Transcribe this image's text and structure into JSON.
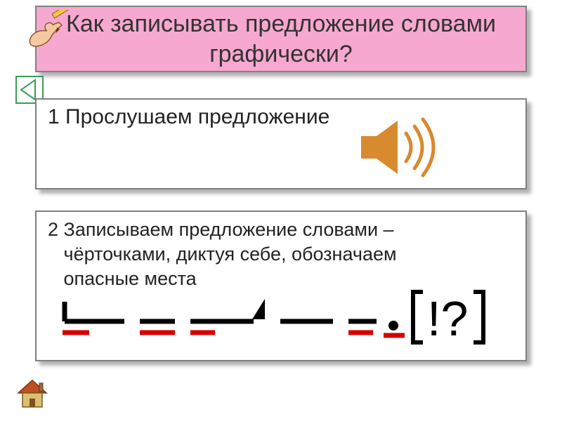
{
  "title": "Как записывать предложение словами графически?",
  "step1": "1  Прослушаем предложение",
  "step2_line1": "2  Записываем предложение  словами –",
  "step2_line2": "чёрточками, диктуя себе, обозначаем",
  "step2_line3": "опасные места",
  "colors": {
    "title_bg": "#f7a8d0",
    "border": "#808080",
    "speaker": "#d88a2e",
    "red": "#d40000",
    "black": "#000000",
    "arrow": "#3b9b5a",
    "home_roof": "#c05020",
    "home_wall": "#d8c070",
    "skin": "#f5c9a0",
    "pencil_yellow": "#f5c542",
    "pencil_tip": "#5a3310"
  },
  "punct": "!?",
  "scheme": {
    "word1_start_h": 28,
    "word_gap": 22,
    "word_widths": [
      85,
      50,
      90,
      75,
      40
    ],
    "red_under": [
      35,
      50,
      35,
      0,
      35
    ],
    "line_thick": 7,
    "red_thick": 7,
    "triangle_after": 3,
    "dot_after": 5
  }
}
